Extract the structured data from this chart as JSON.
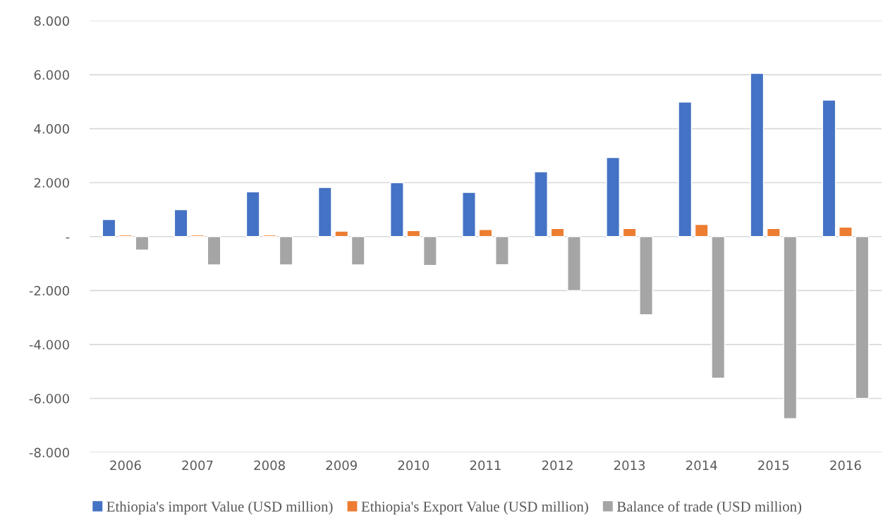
{
  "chart_data": {
    "type": "bar",
    "categories": [
      "2006",
      "2007",
      "2008",
      "2009",
      "2010",
      "2011",
      "2012",
      "2013",
      "2014",
      "2015",
      "2016"
    ],
    "series": [
      {
        "name": "Ethiopia's import Value (USD million)",
        "color": "#4472c4",
        "values": [
          630,
          1000,
          1660,
          1820,
          2000,
          1640,
          2400,
          2930,
          4990,
          6050,
          5060
        ]
      },
      {
        "name": "Ethiopia's Export Value (USD million)",
        "color": "#ed7d31",
        "values": [
          60,
          60,
          60,
          200,
          220,
          260,
          300,
          300,
          450,
          300,
          350
        ]
      },
      {
        "name": "Balance of trade (USD million)",
        "color": "#a5a5a5",
        "values": [
          -500,
          -1050,
          -1050,
          -1050,
          -1070,
          -1040,
          -2000,
          -2900,
          -5250,
          -6750,
          -6000
        ]
      }
    ],
    "ylim": [
      -8000,
      8000
    ],
    "yticks": [
      {
        "value": -8000,
        "label": "-8.000"
      },
      {
        "value": -6000,
        "label": "-6.000"
      },
      {
        "value": -4000,
        "label": "-4.000"
      },
      {
        "value": -2000,
        "label": "-2.000"
      },
      {
        "value": 0,
        "label": "-"
      },
      {
        "value": 2000,
        "label": "2.000"
      },
      {
        "value": 4000,
        "label": "4.000"
      },
      {
        "value": 6000,
        "label": "6.000"
      },
      {
        "value": 8000,
        "label": "8.000"
      }
    ],
    "grid": "y",
    "legend": "bottom"
  }
}
